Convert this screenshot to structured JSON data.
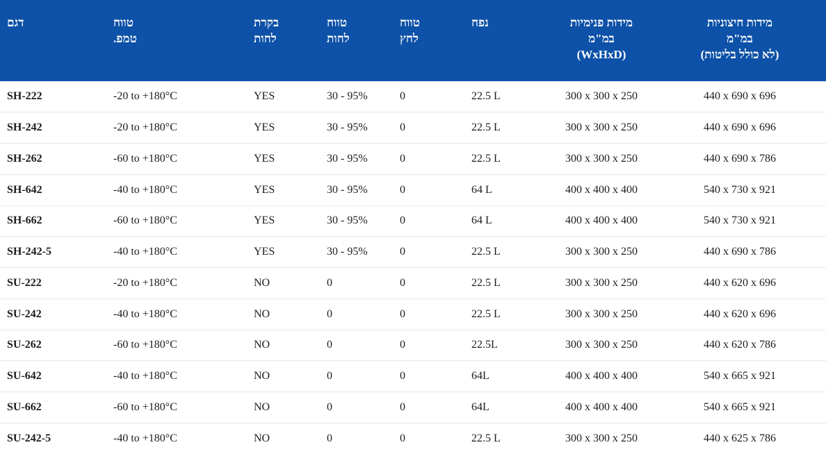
{
  "table": {
    "colors": {
      "header_bg": "#0d51a8",
      "header_text": "#ffffff",
      "row_border": "#e7e7e7",
      "cell_text": "#1c1c1c"
    },
    "columns": [
      {
        "key": "model",
        "label": "דגם",
        "align": "left"
      },
      {
        "key": "temp_range",
        "label": "טווח\nטמפ.",
        "align": "left"
      },
      {
        "key": "humidity_control",
        "label": "בקרת\nלחות",
        "align": "left"
      },
      {
        "key": "humidity_range",
        "label": "טווח\nלחות",
        "align": "left"
      },
      {
        "key": "pressure_range",
        "label": "טווח\nלחץ",
        "align": "left"
      },
      {
        "key": "volume",
        "label": "נפח",
        "align": "left"
      },
      {
        "key": "internal_dims",
        "label": "מידות פנימיות\nבמ\"מ\n(WxHxD)",
        "align": "center"
      },
      {
        "key": "external_dims",
        "label": "מידות חיצוניות\nבמ\"מ\n(לא כולל בליטות)",
        "align": "center"
      }
    ],
    "rows": [
      [
        "SH-222",
        "-20 to +180°C",
        "YES",
        "30 - 95%",
        "0",
        "22.5 L",
        "300 x 300 x 250",
        "440 x 690 x 696"
      ],
      [
        "SH-242",
        "-20 to +180°C",
        "YES",
        "30 - 95%",
        "0",
        "22.5 L",
        "300 x 300 x 250",
        "440 x 690 x 696"
      ],
      [
        "SH-262",
        "-60 to +180°C",
        "YES",
        "30 - 95%",
        "0",
        "22.5 L",
        "300 x 300 x 250",
        "440 x 690 x 786"
      ],
      [
        "SH-642",
        "-40 to +180°C",
        "YES",
        "30 - 95%",
        "0",
        "64 L",
        "400 x 400 x 400",
        "540 x 730 x 921"
      ],
      [
        "SH-662",
        "-60 to +180°C",
        "YES",
        "30 - 95%",
        "0",
        "64 L",
        "400 x 400 x 400",
        "540 x 730 x 921"
      ],
      [
        "SH-242-5",
        "-40 to +180°C",
        "YES",
        "30 - 95%",
        "0",
        "22.5 L",
        "300 x 300 x 250",
        "440 x 690 x 786"
      ],
      [
        "SU-222",
        "-20 to +180°C",
        "NO",
        "0",
        "0",
        "22.5 L",
        "300 x 300 x 250",
        "440 x 620 x 696"
      ],
      [
        "SU-242",
        "-40 to +180°C",
        "NO",
        "0",
        "0",
        "22.5 L",
        "300 x 300 x 250",
        "440 x 620 x 696"
      ],
      [
        "SU-262",
        "-60 to +180°C",
        "NO",
        "0",
        "0",
        "22.5L",
        "300 x 300 x 250",
        "440 x 620 x 786"
      ],
      [
        "SU-642",
        "-40 to +180°C",
        "NO",
        "0",
        "0",
        "64L",
        "400 x 400 x 400",
        "540 x 665 x 921"
      ],
      [
        "SU-662",
        "-60 to +180°C",
        "NO",
        "0",
        "0",
        "64L",
        "400 x 400 x 400",
        "540 x 665 x 921"
      ],
      [
        "SU-242-5",
        "-40 to +180°C",
        "NO",
        "0",
        "0",
        "22.5 L",
        "300 x 300 x 250",
        "440 x 625 x 786"
      ]
    ]
  }
}
